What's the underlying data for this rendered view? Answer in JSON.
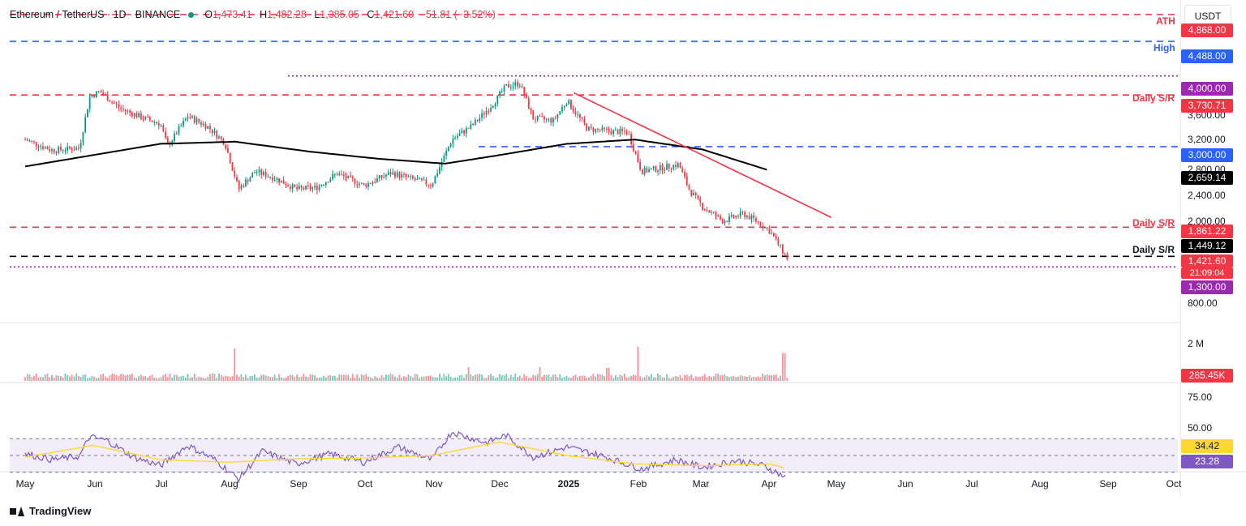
{
  "header": {
    "symbol": "Ethereum / TetherUS · 1D · BINANCE",
    "open_label": "O",
    "open": "1,473.41",
    "high_label": "H",
    "high": "1,482.28",
    "low_label": "L",
    "low": "1,385.05",
    "close_label": "C",
    "close": "1,421.60",
    "change": "−51.81 (−3.52%)"
  },
  "currency_button": "USDT",
  "annotations": {
    "ath": "ATH",
    "high": "High",
    "daily_sr_1": "Daily S/R",
    "daily_sr_2": "Daily S/R",
    "daily_sr_3": "Daily S/R"
  },
  "price_badges": {
    "ath": "4,868.00",
    "high": "4,488.00",
    "level_4000": "4,000.00",
    "sr_3730": "3,730.71",
    "level_3000": "3,000.00",
    "sma200": "2,659.14",
    "sr_1861": "1,861.22",
    "sr_1449": "1,449.12",
    "last_price": "1,421.60",
    "countdown": "21:09:04",
    "level_1300": "1,300.00",
    "volume_last": "285.45K",
    "rsi_ma": "34.42",
    "rsi_value": "23.28"
  },
  "colors": {
    "up": "#089981",
    "down": "#f23645",
    "sma": "#000000",
    "trend": "#f23645",
    "ath": "#f23645",
    "high": "#2962ff",
    "purple": "#9c27b0",
    "rsi_line": "#7e57c2",
    "rsi_ma": "#fdd835"
  },
  "chart_data": [
    {
      "type": "candlestick",
      "title": "Ethereum / TetherUS · 1D · BINANCE",
      "x": [
        "May",
        "Jun",
        "Jul",
        "Aug",
        "Sep",
        "Oct",
        "Nov",
        "Dec",
        "2025",
        "Feb",
        "Mar",
        "Apr",
        "May",
        "Jun",
        "Jul",
        "Aug",
        "Sep",
        "Oct"
      ],
      "y_ticks": [
        "3,600.00",
        "3,200.00",
        "2,800.00",
        "2,400.00",
        "2,000.00",
        "800.00"
      ],
      "ylim": [
        700,
        4950
      ],
      "close_path": [
        {
          "m": 0.0,
          "v": 3100
        },
        {
          "m": 0.4,
          "v": 2950
        },
        {
          "m": 0.8,
          "v": 2980
        },
        {
          "m": 0.95,
          "v": 3700
        },
        {
          "m": 1.1,
          "v": 3780
        },
        {
          "m": 1.4,
          "v": 3540
        },
        {
          "m": 1.7,
          "v": 3420
        },
        {
          "m": 2.0,
          "v": 3320
        },
        {
          "m": 2.1,
          "v": 3000
        },
        {
          "m": 2.4,
          "v": 3430
        },
        {
          "m": 2.7,
          "v": 3280
        },
        {
          "m": 2.95,
          "v": 3050
        },
        {
          "m": 3.15,
          "v": 2400
        },
        {
          "m": 3.4,
          "v": 2650
        },
        {
          "m": 3.7,
          "v": 2550
        },
        {
          "m": 4.0,
          "v": 2400
        },
        {
          "m": 4.3,
          "v": 2420
        },
        {
          "m": 4.6,
          "v": 2620
        },
        {
          "m": 5.0,
          "v": 2450
        },
        {
          "m": 5.4,
          "v": 2630
        },
        {
          "m": 5.8,
          "v": 2520
        },
        {
          "m": 6.0,
          "v": 2460
        },
        {
          "m": 6.3,
          "v": 3100
        },
        {
          "m": 6.6,
          "v": 3300
        },
        {
          "m": 6.9,
          "v": 3600
        },
        {
          "m": 7.1,
          "v": 3850
        },
        {
          "m": 7.3,
          "v": 3900
        },
        {
          "m": 7.5,
          "v": 3400
        },
        {
          "m": 7.8,
          "v": 3370
        },
        {
          "m": 8.0,
          "v": 3650
        },
        {
          "m": 8.3,
          "v": 3250
        },
        {
          "m": 8.6,
          "v": 3220
        },
        {
          "m": 8.9,
          "v": 3200
        },
        {
          "m": 9.1,
          "v": 2650
        },
        {
          "m": 9.4,
          "v": 2700
        },
        {
          "m": 9.65,
          "v": 2750
        },
        {
          "m": 9.8,
          "v": 2400
        },
        {
          "m": 10.0,
          "v": 2150
        },
        {
          "m": 10.3,
          "v": 1950
        },
        {
          "m": 10.6,
          "v": 2050
        },
        {
          "m": 10.8,
          "v": 1950
        },
        {
          "m": 11.0,
          "v": 1800
        },
        {
          "m": 11.25,
          "v": 1421.6
        }
      ],
      "sma200_path": [
        {
          "m": 0.0,
          "v": 2720
        },
        {
          "m": 1.0,
          "v": 2880
        },
        {
          "m": 2.0,
          "v": 3040
        },
        {
          "m": 3.1,
          "v": 3070
        },
        {
          "m": 4.2,
          "v": 2930
        },
        {
          "m": 5.2,
          "v": 2830
        },
        {
          "m": 6.2,
          "v": 2760
        },
        {
          "m": 7.0,
          "v": 2880
        },
        {
          "m": 8.0,
          "v": 3040
        },
        {
          "m": 9.0,
          "v": 3100
        },
        {
          "m": 10.0,
          "v": 2960
        },
        {
          "m": 11.0,
          "v": 2659.14
        }
      ],
      "levels": [
        {
          "value": 4868,
          "style": "dashed",
          "color": "#f23645",
          "label": "ATH"
        },
        {
          "value": 4488,
          "style": "dashed",
          "color": "#2962ff",
          "label": "High"
        },
        {
          "value": 4000,
          "style": "dotted",
          "color": "#9c27b0"
        },
        {
          "value": 3730.71,
          "style": "dashed",
          "color": "#f23645",
          "label": "Daily S/R"
        },
        {
          "value": 3000,
          "style": "dashed",
          "color": "#2962ff"
        },
        {
          "value": 1861.22,
          "style": "dashed",
          "color": "#f23645",
          "label": "Daily S/R"
        },
        {
          "value": 1449.12,
          "style": "dashed",
          "color": "#000000",
          "label": "Daily S/R"
        },
        {
          "value": 1300,
          "style": "dotted",
          "color": "#9c27b0"
        }
      ],
      "trendline": {
        "from": {
          "m": 8.1,
          "v": 3760
        },
        "to": {
          "m": 11.9,
          "v": 2000
        }
      }
    },
    {
      "type": "bar",
      "title": "Volume",
      "y_ticks": [
        "2 M"
      ],
      "last_value": "285.45K",
      "spikes": [
        {
          "m": 3.1,
          "v": 1.75
        },
        {
          "m": 9.05,
          "v": 1.85
        },
        {
          "m": 11.2,
          "v": 1.5
        },
        {
          "m": 6.55,
          "v": 0.75
        },
        {
          "m": 7.6,
          "v": 0.75
        },
        {
          "m": 8.6,
          "v": 0.7
        }
      ]
    },
    {
      "type": "line",
      "title": "RSI",
      "y_ticks": [
        "75.00",
        "50.00"
      ],
      "ylim": [
        15,
        85
      ],
      "bands": [
        70,
        50,
        30
      ],
      "rsi_path": [
        {
          "m": 0.0,
          "v": 52
        },
        {
          "m": 0.4,
          "v": 45
        },
        {
          "m": 0.8,
          "v": 49
        },
        {
          "m": 0.95,
          "v": 72
        },
        {
          "m": 1.2,
          "v": 68
        },
        {
          "m": 1.6,
          "v": 48
        },
        {
          "m": 2.0,
          "v": 38
        },
        {
          "m": 2.4,
          "v": 62
        },
        {
          "m": 2.8,
          "v": 45
        },
        {
          "m": 3.15,
          "v": 22
        },
        {
          "m": 3.5,
          "v": 55
        },
        {
          "m": 4.0,
          "v": 40
        },
        {
          "m": 4.5,
          "v": 52
        },
        {
          "m": 5.0,
          "v": 42
        },
        {
          "m": 5.5,
          "v": 60
        },
        {
          "m": 6.0,
          "v": 45
        },
        {
          "m": 6.3,
          "v": 78
        },
        {
          "m": 6.8,
          "v": 65
        },
        {
          "m": 7.1,
          "v": 74
        },
        {
          "m": 7.5,
          "v": 48
        },
        {
          "m": 8.0,
          "v": 60
        },
        {
          "m": 8.5,
          "v": 50
        },
        {
          "m": 9.1,
          "v": 34
        },
        {
          "m": 9.6,
          "v": 45
        },
        {
          "m": 10.0,
          "v": 36
        },
        {
          "m": 10.5,
          "v": 44
        },
        {
          "m": 10.9,
          "v": 38
        },
        {
          "m": 11.25,
          "v": 23.28
        }
      ],
      "rsi_ma_path": [
        {
          "m": 0.0,
          "v": 48
        },
        {
          "m": 1.0,
          "v": 62
        },
        {
          "m": 2.0,
          "v": 45
        },
        {
          "m": 3.0,
          "v": 42
        },
        {
          "m": 4.0,
          "v": 46
        },
        {
          "m": 5.0,
          "v": 47
        },
        {
          "m": 6.0,
          "v": 50
        },
        {
          "m": 7.0,
          "v": 66
        },
        {
          "m": 8.0,
          "v": 50
        },
        {
          "m": 9.0,
          "v": 40
        },
        {
          "m": 10.0,
          "v": 38
        },
        {
          "m": 11.0,
          "v": 40
        },
        {
          "m": 11.25,
          "v": 34.42
        }
      ]
    }
  ],
  "x_axis": [
    "May",
    "Jun",
    "Jul",
    "Aug",
    "Sep",
    "Oct",
    "Nov",
    "Dec",
    "2025",
    "Feb",
    "Mar",
    "Apr",
    "May",
    "Jun",
    "Jul",
    "Aug",
    "Sep",
    "Oct"
  ],
  "footer": {
    "brand": "TradingView"
  }
}
